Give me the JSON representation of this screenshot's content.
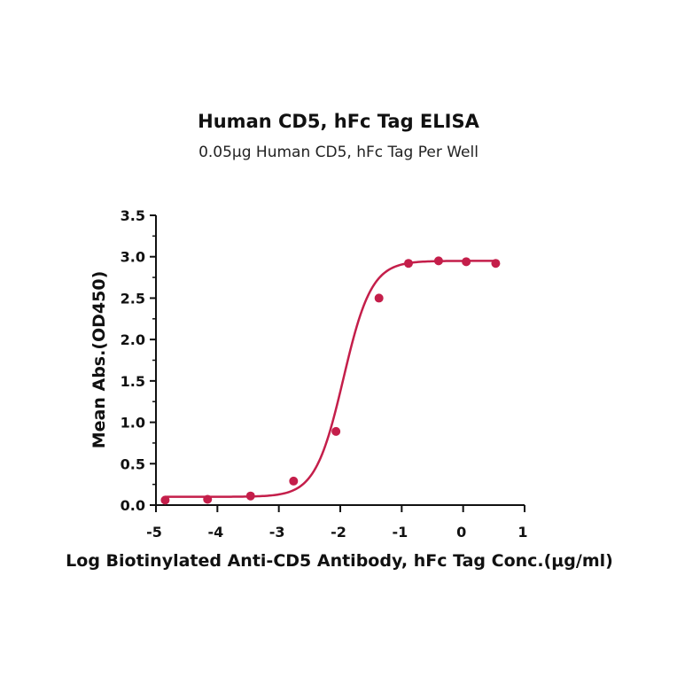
{
  "chart_data": {
    "type": "scatter",
    "title": "Human CD5, hFc Tag ELISA",
    "subtitle": "0.05μg Human CD5, hFc Tag Per Well",
    "xlabel": "Log Biotinylated Anti-CD5 Antibody, hFc Tag Conc.(μg/ml)",
    "ylabel": "Mean Abs.(OD450)",
    "xlim": [
      -5,
      1
    ],
    "ylim": [
      0,
      3.5
    ],
    "xticks": [
      "-5",
      "-4",
      "-3",
      "-2",
      "-1",
      "0",
      "1"
    ],
    "yticks": [
      "0.0",
      "0.5",
      "1.0",
      "1.5",
      "2.0",
      "2.5",
      "3.0",
      "3.5"
    ],
    "grid": false,
    "color": "#c41e4a",
    "points": {
      "x": [
        -4.85,
        -4.16,
        -3.46,
        -2.76,
        -2.07,
        -1.37,
        -0.89,
        -0.4,
        0.05,
        0.53
      ],
      "y": [
        0.06,
        0.07,
        0.11,
        0.29,
        0.89,
        2.5,
        2.92,
        2.95,
        2.94,
        2.92
      ]
    },
    "fit": {
      "bottom": 0.1,
      "top": 2.95,
      "logEC50": -1.95,
      "hill": 1.9,
      "x_start": -4.85,
      "x_end": 0.53
    }
  }
}
